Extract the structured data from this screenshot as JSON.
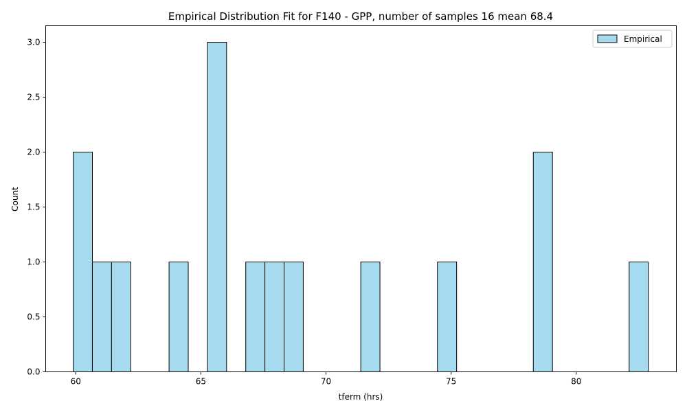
{
  "chart_data": {
    "type": "bar",
    "title": "Empirical Distribution Fit for F140 - GPP, number of samples 16 mean 68.4",
    "xlabel": "tferm (hrs)",
    "ylabel": "Count",
    "xlim": [
      58.8,
      84.0
    ],
    "ylim": [
      0,
      3.15
    ],
    "xticks": [
      60,
      65,
      70,
      75,
      80
    ],
    "yticks": [
      0.0,
      0.5,
      1.0,
      1.5,
      2.0,
      2.5,
      3.0
    ],
    "xtick_labels": [
      "60",
      "65",
      "70",
      "75",
      "80"
    ],
    "ytick_labels": [
      "0.0",
      "0.5",
      "1.0",
      "1.5",
      "2.0",
      "2.5",
      "3.0"
    ],
    "bin_width": 0.766,
    "bins": [
      {
        "left": 59.9,
        "count": 2
      },
      {
        "left": 60.666,
        "count": 1
      },
      {
        "left": 61.432,
        "count": 1
      },
      {
        "left": 63.73,
        "count": 1
      },
      {
        "left": 65.262,
        "count": 3
      },
      {
        "left": 66.794,
        "count": 1
      },
      {
        "left": 67.56,
        "count": 1
      },
      {
        "left": 68.326,
        "count": 1
      },
      {
        "left": 71.39,
        "count": 1
      },
      {
        "left": 74.454,
        "count": 1
      },
      {
        "left": 78.284,
        "count": 2
      },
      {
        "left": 82.114,
        "count": 1
      }
    ],
    "zero_span": [
      59.9,
      82.88
    ],
    "series": [
      {
        "name": "Empirical"
      }
    ],
    "legend_position": "top-right",
    "grid": false,
    "colors": {
      "bar_fill": "#a6dbef",
      "bar_edge": "#000000"
    }
  }
}
